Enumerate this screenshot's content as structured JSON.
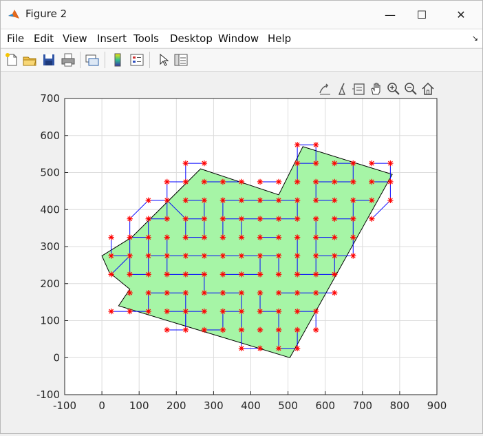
{
  "window": {
    "title": "Figure 2"
  },
  "menu": [
    "File",
    "Edit",
    "View",
    "Insert",
    "Tools",
    "Desktop",
    "Window",
    "Help"
  ],
  "menu_overflow_icon": "curved-arrow-icon",
  "window_controls": {
    "minimize": "—",
    "maximize": "☐",
    "close": "✕"
  },
  "toolbar_icons": [
    "new-figure-icon",
    "open-file-icon",
    "save-icon",
    "print-icon",
    "link-plot-icon",
    "colorbar-icon",
    "legend-icon",
    "edit-plot-arrow-icon",
    "property-inspector-icon"
  ],
  "axes_toolbar_icons": [
    "export-icon",
    "brush-icon",
    "data-tips-icon",
    "pan-icon",
    "zoom-in-icon",
    "zoom-out-icon",
    "home-icon"
  ],
  "colors": {
    "polygon_fill": "#a6f5a6",
    "polygon_edge": "#000000",
    "path": "#0000ff",
    "marker": "#ff0000",
    "grid": "#dcdcdc"
  },
  "chart_data": {
    "type": "scatter",
    "title": "",
    "xlabel": "",
    "ylabel": "",
    "xlim": [
      -100,
      900
    ],
    "ylim": [
      -100,
      700
    ],
    "xticks": [
      "-100",
      "0",
      "100",
      "200",
      "300",
      "400",
      "500",
      "600",
      "700",
      "800",
      "900"
    ],
    "yticks": [
      "-100",
      "0",
      "100",
      "200",
      "300",
      "400",
      "500",
      "600",
      "700"
    ],
    "grid": true,
    "polygon": [
      [
        0,
        275
      ],
      [
        80,
        325
      ],
      [
        265,
        510
      ],
      [
        475,
        440
      ],
      [
        540,
        570
      ],
      [
        780,
        495
      ],
      [
        505,
        0
      ],
      [
        45,
        140
      ],
      [
        75,
        185
      ],
      [
        20,
        230
      ],
      [
        0,
        275
      ]
    ],
    "points": [
      [
        25,
        125
      ],
      [
        25,
        225
      ],
      [
        25,
        275
      ],
      [
        25,
        325
      ],
      [
        75,
        125
      ],
      [
        75,
        175
      ],
      [
        75,
        225
      ],
      [
        75,
        275
      ],
      [
        75,
        325
      ],
      [
        75,
        375
      ],
      [
        125,
        125
      ],
      [
        125,
        175
      ],
      [
        125,
        225
      ],
      [
        125,
        275
      ],
      [
        125,
        325
      ],
      [
        125,
        375
      ],
      [
        125,
        425
      ],
      [
        175,
        75
      ],
      [
        175,
        125
      ],
      [
        175,
        175
      ],
      [
        175,
        225
      ],
      [
        175,
        275
      ],
      [
        175,
        325
      ],
      [
        175,
        375
      ],
      [
        175,
        425
      ],
      [
        175,
        475
      ],
      [
        225,
        75
      ],
      [
        225,
        125
      ],
      [
        225,
        175
      ],
      [
        225,
        225
      ],
      [
        225,
        275
      ],
      [
        225,
        325
      ],
      [
        225,
        375
      ],
      [
        225,
        425
      ],
      [
        225,
        475
      ],
      [
        225,
        525
      ],
      [
        275,
        75
      ],
      [
        275,
        125
      ],
      [
        275,
        175
      ],
      [
        275,
        225
      ],
      [
        275,
        275
      ],
      [
        275,
        325
      ],
      [
        275,
        375
      ],
      [
        275,
        425
      ],
      [
        275,
        475
      ],
      [
        275,
        525
      ],
      [
        325,
        75
      ],
      [
        325,
        125
      ],
      [
        325,
        175
      ],
      [
        325,
        225
      ],
      [
        325,
        275
      ],
      [
        325,
        325
      ],
      [
        325,
        375
      ],
      [
        325,
        425
      ],
      [
        325,
        475
      ],
      [
        375,
        25
      ],
      [
        375,
        75
      ],
      [
        375,
        125
      ],
      [
        375,
        175
      ],
      [
        375,
        225
      ],
      [
        375,
        275
      ],
      [
        375,
        325
      ],
      [
        375,
        375
      ],
      [
        375,
        425
      ],
      [
        375,
        475
      ],
      [
        425,
        25
      ],
      [
        425,
        75
      ],
      [
        425,
        125
      ],
      [
        425,
        175
      ],
      [
        425,
        225
      ],
      [
        425,
        275
      ],
      [
        425,
        325
      ],
      [
        425,
        375
      ],
      [
        425,
        425
      ],
      [
        425,
        475
      ],
      [
        475,
        25
      ],
      [
        475,
        75
      ],
      [
        475,
        125
      ],
      [
        475,
        175
      ],
      [
        475,
        225
      ],
      [
        475,
        275
      ],
      [
        475,
        325
      ],
      [
        475,
        375
      ],
      [
        475,
        425
      ],
      [
        475,
        475
      ],
      [
        525,
        25
      ],
      [
        525,
        75
      ],
      [
        525,
        125
      ],
      [
        525,
        175
      ],
      [
        525,
        225
      ],
      [
        525,
        275
      ],
      [
        525,
        325
      ],
      [
        525,
        375
      ],
      [
        525,
        425
      ],
      [
        525,
        475
      ],
      [
        525,
        525
      ],
      [
        525,
        575
      ],
      [
        575,
        75
      ],
      [
        575,
        125
      ],
      [
        575,
        175
      ],
      [
        575,
        225
      ],
      [
        575,
        275
      ],
      [
        575,
        325
      ],
      [
        575,
        375
      ],
      [
        575,
        425
      ],
      [
        575,
        475
      ],
      [
        575,
        525
      ],
      [
        575,
        575
      ],
      [
        625,
        175
      ],
      [
        625,
        225
      ],
      [
        625,
        275
      ],
      [
        625,
        325
      ],
      [
        625,
        375
      ],
      [
        625,
        425
      ],
      [
        625,
        475
      ],
      [
        625,
        525
      ],
      [
        675,
        275
      ],
      [
        675,
        325
      ],
      [
        675,
        375
      ],
      [
        675,
        425
      ],
      [
        675,
        475
      ],
      [
        675,
        525
      ],
      [
        725,
        375
      ],
      [
        725,
        425
      ],
      [
        725,
        475
      ],
      [
        725,
        525
      ],
      [
        775,
        425
      ],
      [
        775,
        475
      ],
      [
        775,
        525
      ]
    ],
    "path_segments": [
      [
        [
          25,
          125
        ],
        [
          125,
          125
        ]
      ],
      [
        [
          25,
          225
        ],
        [
          75,
          275
        ]
      ],
      [
        [
          25,
          275
        ],
        [
          75,
          275
        ]
      ],
      [
        [
          25,
          325
        ],
        [
          25,
          275
        ]
      ],
      [
        [
          75,
          375
        ],
        [
          75,
          225
        ]
      ],
      [
        [
          75,
          225
        ],
        [
          125,
          225
        ]
      ],
      [
        [
          75,
          325
        ],
        [
          125,
          325
        ]
      ],
      [
        [
          75,
          375
        ],
        [
          125,
          425
        ]
      ],
      [
        [
          125,
          425
        ],
        [
          175,
          425
        ]
      ],
      [
        [
          125,
          375
        ],
        [
          175,
          375
        ]
      ],
      [
        [
          125,
          375
        ],
        [
          125,
          225
        ]
      ],
      [
        [
          125,
          175
        ],
        [
          125,
          125
        ]
      ],
      [
        [
          125,
          175
        ],
        [
          225,
          175
        ]
      ],
      [
        [
          125,
          275
        ],
        [
          225,
          275
        ]
      ],
      [
        [
          175,
          475
        ],
        [
          175,
          375
        ]
      ],
      [
        [
          175,
          475
        ],
        [
          225,
          475
        ]
      ],
      [
        [
          175,
          425
        ],
        [
          225,
          375
        ]
      ],
      [
        [
          175,
          75
        ],
        [
          225,
          75
        ]
      ],
      [
        [
          175,
          125
        ],
        [
          225,
          125
        ]
      ],
      [
        [
          175,
          325
        ],
        [
          175,
          225
        ]
      ],
      [
        [
          175,
          225
        ],
        [
          275,
          225
        ]
      ],
      [
        [
          225,
          525
        ],
        [
          275,
          525
        ]
      ],
      [
        [
          225,
          475
        ],
        [
          225,
          525
        ]
      ],
      [
        [
          225,
          425
        ],
        [
          275,
          425
        ]
      ],
      [
        [
          225,
          375
        ],
        [
          225,
          325
        ]
      ],
      [
        [
          225,
          325
        ],
        [
          275,
          325
        ]
      ],
      [
        [
          225,
          375
        ],
        [
          275,
          375
        ]
      ],
      [
        [
          225,
          275
        ],
        [
          325,
          275
        ]
      ],
      [
        [
          225,
          125
        ],
        [
          275,
          125
        ]
      ],
      [
        [
          225,
          175
        ],
        [
          225,
          75
        ]
      ],
      [
        [
          225,
          75
        ],
        [
          225,
          125
        ]
      ],
      [
        [
          275,
          75
        ],
        [
          325,
          75
        ]
      ],
      [
        [
          275,
          175
        ],
        [
          375,
          175
        ]
      ],
      [
        [
          275,
          425
        ],
        [
          275,
          325
        ]
      ],
      [
        [
          275,
          475
        ],
        [
          375,
          475
        ]
      ],
      [
        [
          275,
          225
        ],
        [
          275,
          175
        ]
      ],
      [
        [
          325,
          425
        ],
        [
          375,
          425
        ]
      ],
      [
        [
          325,
          425
        ],
        [
          325,
          325
        ]
      ],
      [
        [
          325,
          375
        ],
        [
          475,
          375
        ]
      ],
      [
        [
          325,
          275
        ],
        [
          375,
          275
        ]
      ],
      [
        [
          325,
          225
        ],
        [
          375,
          225
        ]
      ],
      [
        [
          325,
          125
        ],
        [
          375,
          125
        ]
      ],
      [
        [
          325,
          125
        ],
        [
          325,
          75
        ]
      ],
      [
        [
          375,
          25
        ],
        [
          425,
          25
        ]
      ],
      [
        [
          375,
          25
        ],
        [
          375,
          125
        ]
      ],
      [
        [
          375,
          175
        ],
        [
          375,
          75
        ]
      ],
      [
        [
          375,
          225
        ],
        [
          425,
          225
        ]
      ],
      [
        [
          375,
          325
        ],
        [
          375,
          375
        ]
      ],
      [
        [
          375,
          425
        ],
        [
          475,
          425
        ]
      ],
      [
        [
          375,
          275
        ],
        [
          475,
          275
        ]
      ],
      [
        [
          425,
          175
        ],
        [
          425,
          125
        ]
      ],
      [
        [
          425,
          125
        ],
        [
          475,
          125
        ]
      ],
      [
        [
          425,
          225
        ],
        [
          425,
          275
        ]
      ],
      [
        [
          425,
          325
        ],
        [
          475,
          325
        ]
      ],
      [
        [
          425,
          475
        ],
        [
          475,
          475
        ]
      ],
      [
        [
          475,
          25
        ],
        [
          525,
          25
        ]
      ],
      [
        [
          475,
          25
        ],
        [
          475,
          125
        ]
      ],
      [
        [
          475,
          175
        ],
        [
          525,
          175
        ]
      ],
      [
        [
          475,
          225
        ],
        [
          475,
          275
        ]
      ],
      [
        [
          475,
          375
        ],
        [
          525,
          375
        ]
      ],
      [
        [
          475,
          425
        ],
        [
          525,
          425
        ]
      ],
      [
        [
          525,
          475
        ],
        [
          525,
          575
        ]
      ],
      [
        [
          525,
          575
        ],
        [
          575,
          575
        ]
      ],
      [
        [
          525,
          525
        ],
        [
          575,
          525
        ]
      ],
      [
        [
          525,
          425
        ],
        [
          525,
          375
        ]
      ],
      [
        [
          525,
          325
        ],
        [
          525,
          225
        ]
      ],
      [
        [
          525,
          225
        ],
        [
          625,
          225
        ]
      ],
      [
        [
          525,
          175
        ],
        [
          575,
          175
        ]
      ],
      [
        [
          525,
          125
        ],
        [
          575,
          125
        ]
      ],
      [
        [
          525,
          75
        ],
        [
          525,
          25
        ]
      ],
      [
        [
          575,
          575
        ],
        [
          575,
          525
        ]
      ],
      [
        [
          575,
          475
        ],
        [
          675,
          475
        ]
      ],
      [
        [
          575,
          425
        ],
        [
          625,
          425
        ]
      ],
      [
        [
          575,
          375
        ],
        [
          575,
          225
        ]
      ],
      [
        [
          575,
          325
        ],
        [
          625,
          325
        ]
      ],
      [
        [
          575,
          275
        ],
        [
          675,
          275
        ]
      ],
      [
        [
          575,
          125
        ],
        [
          575,
          75
        ]
      ],
      [
        [
          575,
          175
        ],
        [
          625,
          175
        ]
      ],
      [
        [
          575,
          425
        ],
        [
          575,
          475
        ]
      ],
      [
        [
          625,
          525
        ],
        [
          675,
          525
        ]
      ],
      [
        [
          625,
          375
        ],
        [
          675,
          375
        ]
      ],
      [
        [
          625,
          275
        ],
        [
          625,
          225
        ]
      ],
      [
        [
          675,
          525
        ],
        [
          675,
          475
        ]
      ],
      [
        [
          675,
          425
        ],
        [
          725,
          425
        ]
      ],
      [
        [
          675,
          425
        ],
        [
          675,
          275
        ]
      ],
      [
        [
          725,
          525
        ],
        [
          775,
          525
        ]
      ],
      [
        [
          725,
          475
        ],
        [
          775,
          475
        ]
      ],
      [
        [
          725,
          375
        ],
        [
          775,
          425
        ]
      ],
      [
        [
          775,
          525
        ],
        [
          775,
          425
        ]
      ]
    ]
  }
}
